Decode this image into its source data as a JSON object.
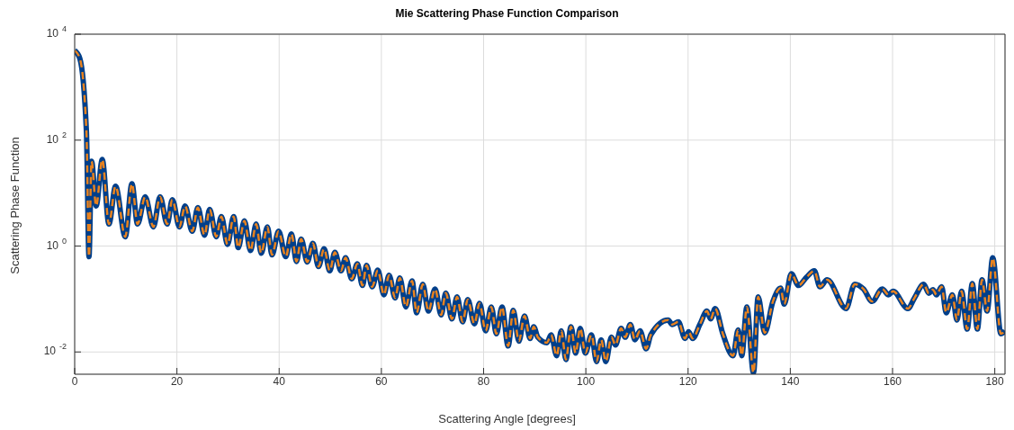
{
  "chart_data": {
    "type": "line",
    "title": "Mie Scattering Phase Function Comparison",
    "xlabel": "Scattering Angle [degrees]",
    "ylabel": "Scattering Phase Function",
    "x": [
      0,
      1,
      2.3,
      2.8,
      3.3,
      4.2,
      5.4,
      6.7,
      8.0,
      9.9,
      11.2,
      12.3,
      13.8,
      15.4,
      16.7,
      18.1,
      19.1,
      20.5,
      21.6,
      23,
      24.1,
      25.4,
      26.4,
      27.7,
      28.7,
      29.9,
      31.1,
      32,
      33.2,
      34.4,
      35.5,
      36.5,
      37.7,
      38.6,
      39.9,
      41.3,
      42.4,
      43.4,
      44.3,
      45.5,
      46.6,
      47.7,
      48.8,
      49.9,
      50.9,
      52.1,
      53.0,
      54.2,
      55.3,
      56.3,
      57.1,
      58.2,
      59.3,
      60.5,
      61.5,
      62.7,
      63.6,
      64.8,
      66.0,
      66.9,
      68.1,
      69.2,
      70.5,
      71.7,
      72.6,
      73.8,
      74.8,
      75.9,
      76.9,
      78.2,
      79.2,
      80.4,
      81.5,
      82.5,
      83.6,
      84.8,
      85.8,
      86.9,
      88.0,
      89.1,
      89.8,
      90.6,
      92.4,
      93.2,
      94.3,
      95.2,
      96.1,
      97.1,
      98.0,
      98.9,
      99.9,
      101.1,
      102.1,
      103.0,
      103.9,
      105.0,
      105.8,
      106.9,
      107.7,
      108.7,
      109.6,
      110.6,
      111.8,
      112.7,
      116.1,
      116.9,
      118.1,
      119.4,
      120.1,
      120.9,
      122.3,
      123.7,
      124.4,
      125.3,
      126.8,
      128.8,
      129.8,
      130.5,
      131.5,
      132.8,
      133.7,
      135.0,
      136.6,
      138.1,
      138.8,
      140.2,
      141.6,
      143.2,
      144.7,
      145.8,
      147.2,
      150.9,
      152.6,
      154.3,
      156.0,
      158.0,
      159.2,
      160.1,
      163.0,
      164.3,
      166.1,
      167.1,
      167.9,
      168.6,
      169.6,
      170.5,
      171.7,
      172.6,
      173.5,
      174.6,
      175.6,
      176.6,
      177.5,
      178.5,
      179.6,
      181.2,
      182
    ],
    "series": [
      {
        "color": "#003f8a",
        "line_style": "solid",
        "values": [
          4900,
          3500,
          145,
          0.63,
          40,
          5.7,
          43,
          2.6,
          13.5,
          1.5,
          15,
          2.6,
          8.5,
          2.3,
          8.5,
          2.6,
          7.5,
          2.3,
          5.7,
          1.9,
          5.3,
          1.6,
          4.9,
          1.5,
          3.6,
          1.07,
          3.6,
          0.93,
          3.0,
          0.82,
          2.6,
          0.73,
          2.3,
          0.68,
          1.9,
          0.63,
          1.7,
          0.51,
          1.36,
          0.5,
          1.12,
          0.41,
          0.89,
          0.34,
          0.76,
          0.34,
          0.6,
          0.24,
          0.46,
          0.18,
          0.43,
          0.17,
          0.35,
          0.12,
          0.28,
          0.105,
          0.25,
          0.071,
          0.22,
          0.055,
          0.19,
          0.059,
          0.155,
          0.05,
          0.13,
          0.042,
          0.11,
          0.037,
          0.098,
          0.034,
          0.083,
          0.025,
          0.071,
          0.022,
          0.071,
          0.013,
          0.061,
          0.016,
          0.048,
          0.018,
          0.03,
          0.019,
          0.015,
          0.021,
          0.0085,
          0.025,
          0.0072,
          0.03,
          0.0095,
          0.028,
          0.0095,
          0.021,
          0.0066,
          0.017,
          0.0066,
          0.019,
          0.0135,
          0.028,
          0.019,
          0.033,
          0.017,
          0.025,
          0.0115,
          0.021,
          0.04,
          0.033,
          0.037,
          0.018,
          0.024,
          0.018,
          0.033,
          0.059,
          0.042,
          0.066,
          0.022,
          0.0085,
          0.026,
          0.0085,
          0.071,
          0.004,
          0.11,
          0.023,
          0.09,
          0.16,
          0.08,
          0.3,
          0.18,
          0.26,
          0.34,
          0.17,
          0.23,
          0.066,
          0.19,
          0.155,
          0.09,
          0.155,
          0.12,
          0.14,
          0.066,
          0.105,
          0.19,
          0.128,
          0.15,
          0.12,
          0.17,
          0.055,
          0.12,
          0.04,
          0.14,
          0.027,
          0.195,
          0.027,
          0.23,
          0.059,
          0.6,
          0.022,
          0.025
        ]
      },
      {
        "color": "#e8821e",
        "line_style": "dashed",
        "values": [
          4900,
          3500,
          145,
          0.63,
          40,
          5.7,
          43,
          2.6,
          13.5,
          1.5,
          15,
          2.6,
          8.5,
          2.3,
          8.5,
          2.6,
          7.5,
          2.3,
          5.7,
          1.9,
          5.3,
          1.6,
          4.9,
          1.5,
          3.6,
          1.07,
          3.6,
          0.93,
          3.0,
          0.82,
          2.6,
          0.73,
          2.3,
          0.68,
          1.9,
          0.63,
          1.7,
          0.51,
          1.36,
          0.5,
          1.12,
          0.41,
          0.89,
          0.34,
          0.76,
          0.34,
          0.6,
          0.24,
          0.46,
          0.18,
          0.43,
          0.17,
          0.35,
          0.12,
          0.28,
          0.105,
          0.25,
          0.071,
          0.22,
          0.055,
          0.19,
          0.059,
          0.155,
          0.05,
          0.13,
          0.042,
          0.11,
          0.037,
          0.098,
          0.034,
          0.083,
          0.025,
          0.071,
          0.022,
          0.071,
          0.013,
          0.061,
          0.016,
          0.048,
          0.018,
          0.03,
          0.019,
          0.015,
          0.021,
          0.0085,
          0.025,
          0.0072,
          0.03,
          0.0095,
          0.028,
          0.0095,
          0.021,
          0.0066,
          0.017,
          0.0066,
          0.019,
          0.0135,
          0.028,
          0.019,
          0.033,
          0.017,
          0.025,
          0.0115,
          0.021,
          0.04,
          0.033,
          0.037,
          0.018,
          0.024,
          0.018,
          0.033,
          0.059,
          0.042,
          0.066,
          0.022,
          0.0085,
          0.026,
          0.0085,
          0.071,
          0.004,
          0.11,
          0.023,
          0.09,
          0.16,
          0.08,
          0.3,
          0.18,
          0.26,
          0.34,
          0.17,
          0.23,
          0.066,
          0.19,
          0.155,
          0.09,
          0.155,
          0.12,
          0.14,
          0.066,
          0.105,
          0.19,
          0.128,
          0.15,
          0.12,
          0.17,
          0.055,
          0.12,
          0.04,
          0.14,
          0.027,
          0.195,
          0.027,
          0.23,
          0.059,
          0.6,
          0.022,
          0.025
        ]
      }
    ],
    "xlim": [
      0,
      182
    ],
    "xticks": [
      0,
      20,
      40,
      60,
      80,
      100,
      120,
      140,
      160,
      180
    ],
    "ylim": [
      0.0038,
      10000
    ],
    "yticks": [
      {
        "value": 0.01,
        "label": "10$^{-2}$"
      },
      {
        "value": 1,
        "label": "10$^{0}$"
      },
      {
        "value": 100,
        "label": "10$^{2}$"
      },
      {
        "value": 10000,
        "label": "10$^{4}$"
      }
    ],
    "log": "y",
    "grid": true
  }
}
